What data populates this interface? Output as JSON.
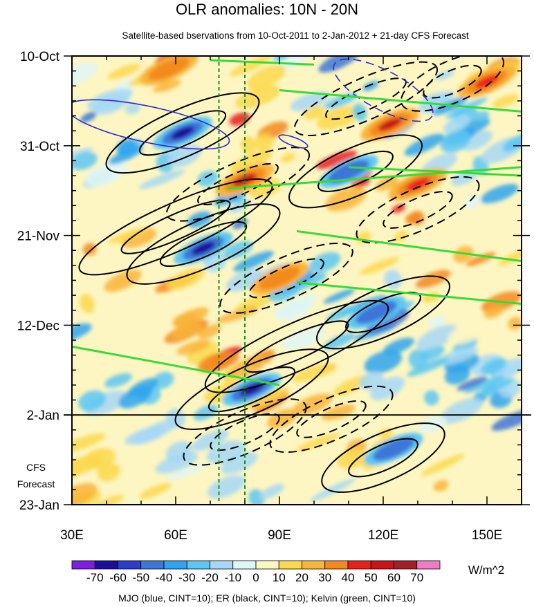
{
  "chart_data": {
    "type": "heatmap",
    "title": "OLR anomalies: 10N - 20N",
    "subtitle": "Satellite-based bservations from 10-Oct-2011 to 2-Jan-2012 + 21-day CFS Forecast",
    "x_axis": {
      "range": [
        30,
        160
      ],
      "ticks": [
        {
          "value": 30,
          "label": "30E"
        },
        {
          "value": 60,
          "label": "60E"
        },
        {
          "value": 90,
          "label": "90E"
        },
        {
          "value": 120,
          "label": "120E"
        },
        {
          "value": 150,
          "label": "150E"
        }
      ]
    },
    "y_axis": {
      "unit": "days since 10-Oct-2011",
      "range": [
        0,
        105
      ],
      "ticks": [
        {
          "day": 0,
          "label": "10-Oct"
        },
        {
          "day": 21,
          "label": "31-Oct"
        },
        {
          "day": 42,
          "label": "21-Nov"
        },
        {
          "day": 63,
          "label": "12-Dec"
        },
        {
          "day": 84,
          "label": "2-Jan"
        },
        {
          "day": 105,
          "label": "23-Jan"
        }
      ]
    },
    "forecast_start_day": 84,
    "forecast_label": [
      "CFS",
      "Forecast"
    ],
    "reference_longitudes": [
      72.5,
      80
    ],
    "colorbar": {
      "levels": [
        "-70",
        "-60",
        "-50",
        "-40",
        "-30",
        "-20",
        "-10",
        "0",
        "10",
        "20",
        "30",
        "40",
        "50",
        "60",
        "70"
      ],
      "colors": [
        "#7b1fe0",
        "#1a0f9a",
        "#2c3ccc",
        "#3e76d8",
        "#2ea4ef",
        "#5cc7f2",
        "#a6d8f6",
        "#dff6f6",
        "#fdf6c2",
        "#fbd84c",
        "#f9b43a",
        "#f38a1f",
        "#e8211c",
        "#c91518",
        "#a41e28",
        "#f07ac6"
      ],
      "units": "W/m^2"
    },
    "olr_anomaly_features": [
      {
        "sign": "negative",
        "lon": 62,
        "day": 18,
        "value": -70
      },
      {
        "sign": "negative",
        "lon": 68,
        "day": 45,
        "value": -70
      },
      {
        "sign": "negative",
        "lon": 82,
        "day": 78,
        "value": -70
      },
      {
        "sign": "negative",
        "lon": 110,
        "day": 27,
        "value": -50
      },
      {
        "sign": "negative",
        "lon": 118,
        "day": 60,
        "value": -50
      },
      {
        "sign": "negative",
        "lon": 123,
        "day": 92,
        "value": -50
      },
      {
        "sign": "positive",
        "lon": 80,
        "day": 29,
        "value": 50
      },
      {
        "sign": "positive",
        "lon": 122,
        "day": 16,
        "value": 50
      },
      {
        "sign": "positive",
        "lon": 130,
        "day": 30,
        "value": 40
      },
      {
        "sign": "positive",
        "lon": 150,
        "day": 6,
        "value": 40
      },
      {
        "sign": "positive",
        "lon": 58,
        "day": 3,
        "value": 30
      },
      {
        "sign": "positive",
        "lon": 90,
        "day": 52,
        "value": 30
      }
    ],
    "contour_legend": "MJO (blue, CINT=10); ER (black, CINT=10); Kelvin (green, CINT=10)"
  }
}
